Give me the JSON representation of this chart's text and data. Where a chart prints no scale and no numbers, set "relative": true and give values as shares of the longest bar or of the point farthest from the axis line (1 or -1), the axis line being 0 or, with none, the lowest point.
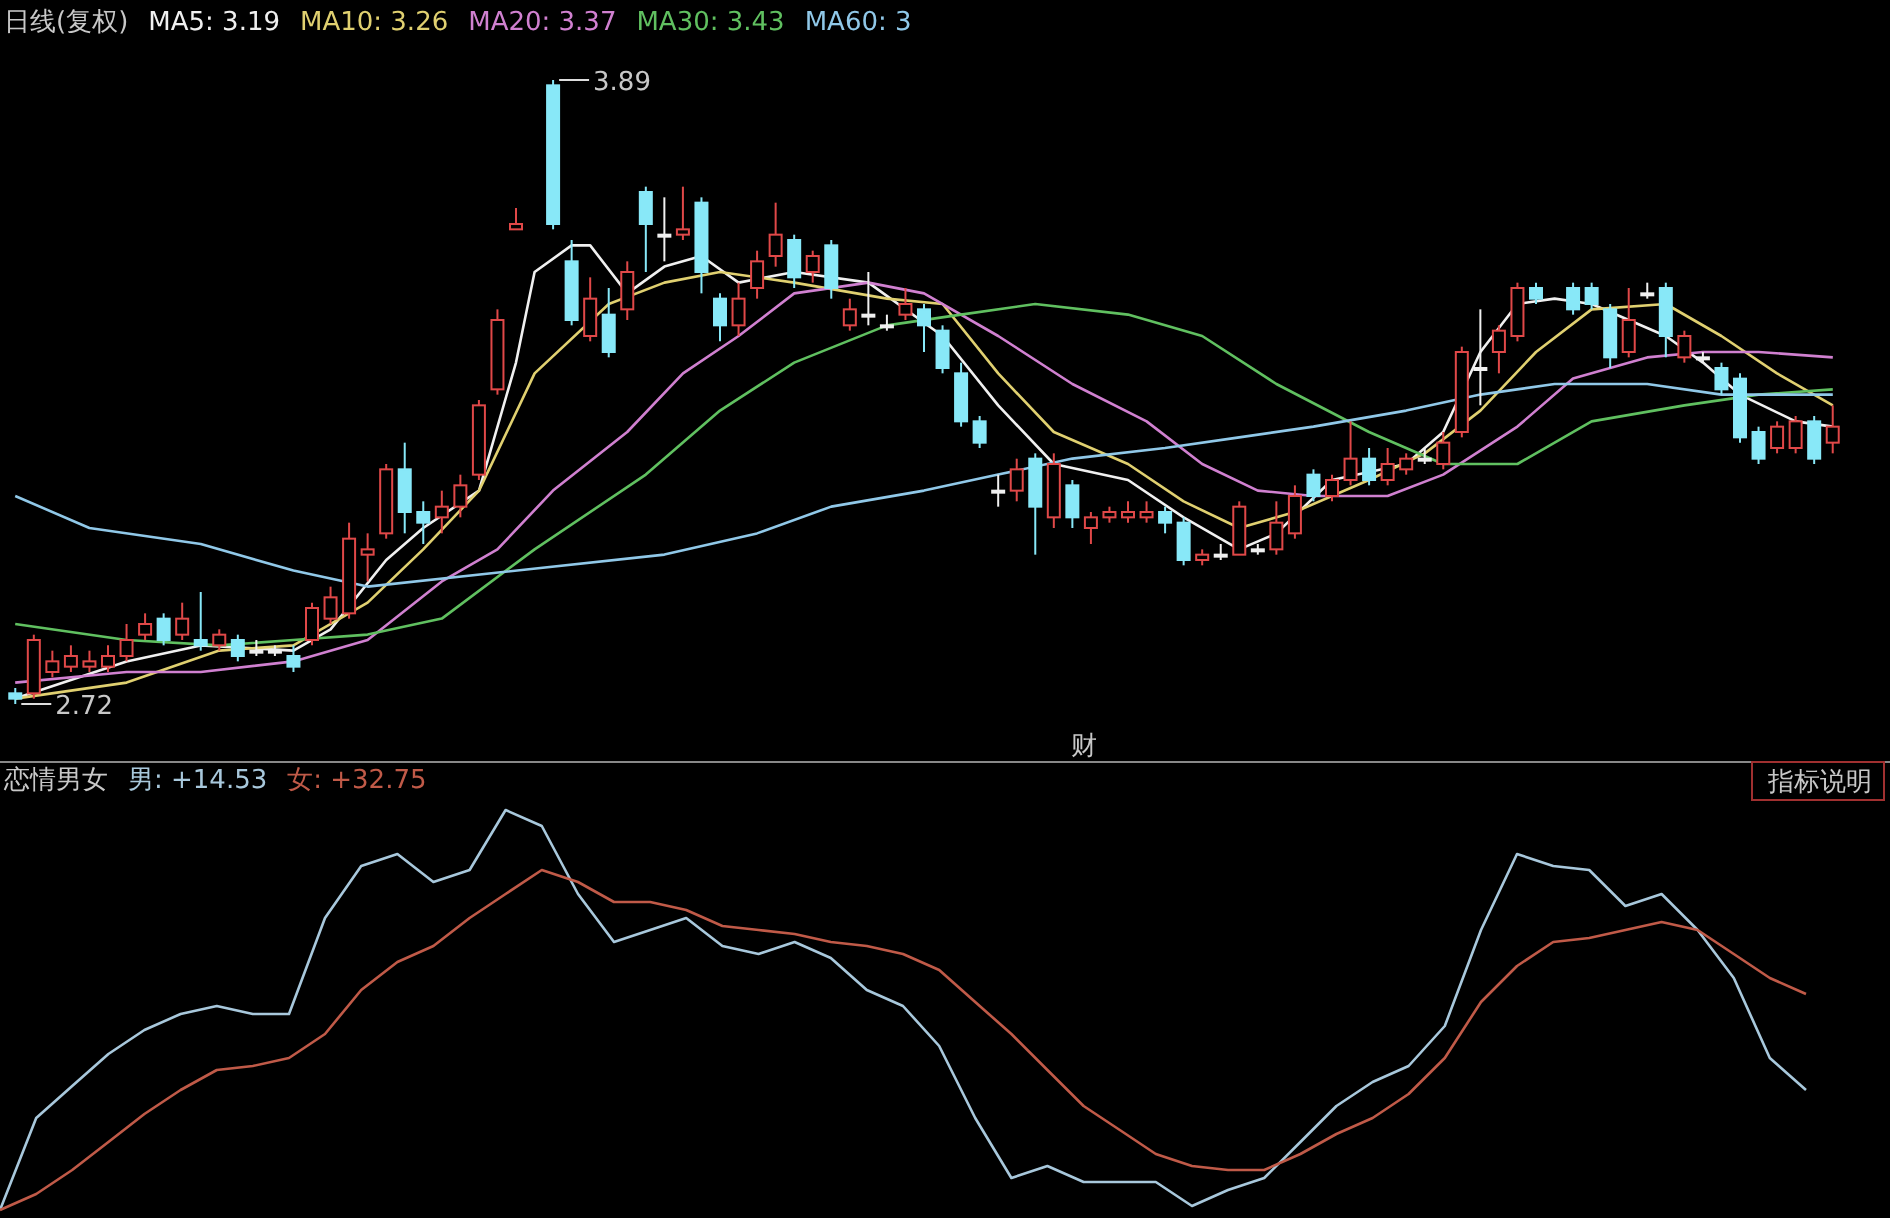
{
  "chart_data": [
    {
      "type": "candlestick",
      "categories": [
        null,
        null,
        null,
        null,
        null,
        null,
        null,
        null,
        null,
        null,
        null,
        null,
        null,
        null,
        null,
        null,
        null,
        null,
        null,
        null,
        null,
        null,
        null,
        null,
        null,
        null,
        null,
        null,
        null,
        null,
        null,
        null,
        null,
        null,
        null,
        null,
        null,
        null,
        null,
        null,
        null,
        null,
        null,
        null,
        null,
        null,
        null,
        null,
        null,
        null,
        null,
        null,
        null,
        null,
        null,
        null,
        null,
        null,
        null,
        null,
        null,
        null,
        null,
        null,
        null,
        null,
        null,
        null,
        null,
        null,
        null,
        null,
        null,
        null,
        null,
        null,
        null,
        null,
        null,
        null,
        null,
        null,
        null,
        null,
        null,
        null,
        null,
        null,
        null,
        null,
        null,
        null,
        null,
        null,
        null,
        null,
        null,
        null,
        null
      ],
      "ohlc": [
        [
          2.74,
          2.75,
          2.72,
          2.73
        ],
        [
          2.74,
          2.85,
          2.73,
          2.84
        ],
        [
          2.78,
          2.82,
          2.77,
          2.8
        ],
        [
          2.79,
          2.83,
          2.78,
          2.81
        ],
        [
          2.79,
          2.82,
          2.78,
          2.8
        ],
        [
          2.79,
          2.83,
          2.78,
          2.81
        ],
        [
          2.81,
          2.87,
          2.8,
          2.84
        ],
        [
          2.85,
          2.89,
          2.84,
          2.87
        ],
        [
          2.88,
          2.89,
          2.83,
          2.84
        ],
        [
          2.85,
          2.91,
          2.84,
          2.88
        ],
        [
          2.84,
          2.93,
          2.82,
          2.83
        ],
        [
          2.83,
          2.86,
          2.82,
          2.85
        ],
        [
          2.84,
          2.85,
          2.8,
          2.81
        ],
        [
          2.82,
          2.84,
          2.81,
          2.82
        ],
        [
          2.82,
          2.83,
          2.81,
          2.82
        ],
        [
          2.81,
          2.83,
          2.78,
          2.79
        ],
        [
          2.84,
          2.91,
          2.83,
          2.9
        ],
        [
          2.88,
          2.94,
          2.87,
          2.92
        ],
        [
          2.89,
          3.06,
          2.88,
          3.03
        ],
        [
          3.0,
          3.04,
          2.95,
          3.01
        ],
        [
          3.04,
          3.17,
          3.03,
          3.16
        ],
        [
          3.16,
          3.21,
          3.04,
          3.08
        ],
        [
          3.08,
          3.1,
          3.02,
          3.06
        ],
        [
          3.07,
          3.12,
          3.04,
          3.09
        ],
        [
          3.09,
          3.15,
          3.07,
          3.13
        ],
        [
          3.15,
          3.29,
          3.14,
          3.28
        ],
        [
          3.31,
          3.46,
          3.3,
          3.44
        ],
        [
          3.61,
          3.65,
          3.61,
          3.62
        ],
        null,
        [
          3.88,
          3.89,
          3.61,
          3.62
        ],
        [
          3.55,
          3.59,
          3.43,
          3.44
        ],
        [
          3.41,
          3.52,
          3.4,
          3.48
        ],
        [
          3.45,
          3.5,
          3.37,
          3.38
        ],
        [
          3.46,
          3.55,
          3.44,
          3.53
        ],
        [
          3.68,
          3.69,
          3.53,
          3.62
        ],
        [
          3.6,
          3.67,
          3.55,
          3.6
        ],
        [
          3.6,
          3.69,
          3.59,
          3.61
        ],
        [
          3.66,
          3.67,
          3.49,
          3.53
        ],
        [
          3.48,
          3.49,
          3.4,
          3.43
        ],
        [
          3.43,
          3.51,
          3.41,
          3.48
        ],
        [
          3.5,
          3.57,
          3.48,
          3.55
        ],
        [
          3.56,
          3.66,
          3.54,
          3.6
        ],
        [
          3.59,
          3.6,
          3.5,
          3.52
        ],
        [
          3.53,
          3.57,
          3.51,
          3.56
        ],
        [
          3.58,
          3.59,
          3.48,
          3.5
        ],
        [
          3.43,
          3.48,
          3.42,
          3.46
        ],
        [
          3.45,
          3.53,
          3.43,
          3.45
        ],
        [
          3.43,
          3.45,
          3.42,
          3.43
        ],
        [
          3.45,
          3.5,
          3.44,
          3.47
        ],
        [
          3.46,
          3.47,
          3.38,
          3.43
        ],
        [
          3.42,
          3.43,
          3.34,
          3.35
        ],
        [
          3.34,
          3.36,
          3.24,
          3.25
        ],
        [
          3.25,
          3.26,
          3.2,
          3.21
        ],
        [
          3.12,
          3.15,
          3.09,
          3.12
        ],
        [
          3.12,
          3.18,
          3.1,
          3.16
        ],
        [
          3.18,
          3.19,
          3.0,
          3.09
        ],
        [
          3.07,
          3.19,
          3.05,
          3.17
        ],
        [
          3.13,
          3.14,
          3.05,
          3.07
        ],
        [
          3.05,
          3.08,
          3.02,
          3.07
        ],
        [
          3.07,
          3.09,
          3.06,
          3.08
        ],
        [
          3.07,
          3.1,
          3.06,
          3.08
        ],
        [
          3.07,
          3.1,
          3.06,
          3.08
        ],
        [
          3.08,
          3.09,
          3.04,
          3.06
        ],
        [
          3.06,
          3.07,
          2.98,
          2.99
        ],
        [
          2.99,
          3.01,
          2.98,
          3.0
        ],
        [
          3.0,
          3.02,
          2.99,
          3.0
        ],
        [
          3.0,
          3.1,
          3.0,
          3.09
        ],
        [
          3.01,
          3.02,
          3.0,
          3.01
        ],
        [
          3.01,
          3.1,
          3.0,
          3.06
        ],
        [
          3.04,
          3.13,
          3.03,
          3.11
        ],
        [
          3.15,
          3.16,
          3.1,
          3.11
        ],
        [
          3.11,
          3.15,
          3.1,
          3.14
        ],
        [
          3.14,
          3.25,
          3.13,
          3.18
        ],
        [
          3.18,
          3.2,
          3.13,
          3.14
        ],
        [
          3.14,
          3.2,
          3.13,
          3.17
        ],
        [
          3.16,
          3.19,
          3.15,
          3.18
        ],
        [
          3.18,
          3.2,
          3.17,
          3.18
        ],
        [
          3.17,
          3.23,
          3.16,
          3.21
        ],
        [
          3.23,
          3.39,
          3.22,
          3.38
        ],
        [
          3.35,
          3.46,
          3.28,
          3.35
        ],
        [
          3.38,
          3.43,
          3.34,
          3.42
        ],
        [
          3.41,
          3.51,
          3.4,
          3.5
        ],
        [
          3.5,
          3.51,
          3.47,
          3.48
        ],
        null,
        [
          3.5,
          3.51,
          3.45,
          3.46
        ],
        [
          3.5,
          3.51,
          3.46,
          3.47
        ],
        [
          3.46,
          3.47,
          3.35,
          3.37
        ],
        [
          3.38,
          3.5,
          3.37,
          3.44
        ],
        [
          3.49,
          3.51,
          3.48,
          3.49
        ],
        [
          3.5,
          3.51,
          3.37,
          3.41
        ],
        [
          3.37,
          3.42,
          3.36,
          3.41
        ],
        [
          3.37,
          3.38,
          3.36,
          3.37
        ],
        [
          3.35,
          3.36,
          3.3,
          3.31
        ],
        [
          3.33,
          3.34,
          3.21,
          3.22
        ],
        [
          3.23,
          3.24,
          3.17,
          3.18
        ],
        [
          3.2,
          3.25,
          3.19,
          3.24
        ],
        [
          3.2,
          3.26,
          3.19,
          3.25
        ],
        [
          3.25,
          3.26,
          3.17,
          3.18
        ],
        [
          3.21,
          3.28,
          3.19,
          3.24
        ]
      ],
      "series": [
        {
          "type": "line",
          "name": "MA5: 3.19",
          "color": "#f0f0f0",
          "values": [
            2.73,
            null,
            null,
            null,
            null,
            null,
            2.8,
            null,
            null,
            null,
            2.83,
            null,
            null,
            null,
            null,
            2.82,
            null,
            2.86,
            null,
            null,
            2.99,
            null,
            3.05,
            null,
            null,
            3.12,
            null,
            3.36,
            3.53,
            null,
            3.58,
            3.58,
            null,
            3.49,
            null,
            3.54,
            null,
            3.56,
            null,
            3.51,
            null,
            null,
            3.53,
            null,
            null,
            null,
            3.51,
            null,
            null,
            null,
            3.41,
            null,
            null,
            3.28,
            null,
            null,
            3.17,
            null,
            null,
            null,
            3.14,
            null,
            null,
            3.07,
            null,
            null,
            3.01,
            null,
            3.04,
            null,
            null,
            3.14,
            null,
            null,
            null,
            3.17,
            null,
            3.23,
            null,
            3.38,
            null,
            3.47,
            null,
            3.48,
            null,
            3.47,
            null,
            null,
            null,
            3.41,
            null,
            3.36,
            null,
            3.3,
            null,
            null,
            3.25,
            null,
            3.24
          ]
        },
        {
          "type": "line",
          "name": "MA10: 3.26",
          "color": "#e0d070",
          "values": [
            2.73,
            null,
            null,
            null,
            null,
            null,
            2.76,
            null,
            null,
            null,
            null,
            2.82,
            null,
            null,
            null,
            2.83,
            null,
            null,
            null,
            2.91,
            null,
            null,
            3.01,
            null,
            null,
            3.12,
            null,
            null,
            3.34,
            null,
            null,
            null,
            3.47,
            null,
            null,
            3.51,
            null,
            null,
            3.53,
            null,
            null,
            null,
            3.51,
            null,
            null,
            null,
            null,
            3.48,
            null,
            null,
            3.47,
            null,
            null,
            3.34,
            null,
            null,
            3.23,
            null,
            null,
            null,
            3.17,
            null,
            null,
            3.1,
            null,
            null,
            3.05,
            null,
            null,
            3.08,
            null,
            null,
            null,
            3.14,
            null,
            null,
            3.19,
            null,
            null,
            3.27,
            null,
            null,
            3.38,
            null,
            null,
            3.46,
            null,
            null,
            null,
            3.47,
            null,
            null,
            3.41,
            null,
            null,
            3.34,
            null,
            null,
            3.28
          ]
        },
        {
          "type": "line",
          "name": "MA20: 3.37",
          "color": "#d080d0",
          "values": [
            2.76,
            null,
            null,
            null,
            null,
            null,
            2.78,
            null,
            null,
            null,
            2.78,
            null,
            null,
            null,
            null,
            2.8,
            null,
            null,
            null,
            2.84,
            null,
            null,
            null,
            2.95,
            null,
            null,
            3.01,
            null,
            null,
            3.12,
            null,
            null,
            null,
            3.23,
            null,
            null,
            3.34,
            null,
            null,
            3.41,
            null,
            null,
            3.49,
            null,
            null,
            null,
            3.51,
            null,
            null,
            3.49,
            null,
            null,
            null,
            3.41,
            null,
            null,
            null,
            3.32,
            null,
            null,
            null,
            3.25,
            null,
            null,
            3.17,
            null,
            null,
            3.12,
            null,
            null,
            3.11,
            null,
            null,
            null,
            3.11,
            null,
            null,
            3.15,
            null,
            null,
            null,
            3.24,
            null,
            null,
            3.33,
            null,
            null,
            null,
            3.37,
            null,
            null,
            3.38,
            null,
            null,
            3.38,
            null,
            null,
            null,
            3.37
          ]
        },
        {
          "type": "line",
          "name": "MA30: 3.43",
          "color": "#60c060",
          "values": [
            2.87,
            null,
            null,
            null,
            null,
            null,
            2.84,
            null,
            null,
            null,
            null,
            2.83,
            null,
            null,
            null,
            2.84,
            null,
            null,
            null,
            2.85,
            null,
            null,
            null,
            2.88,
            null,
            null,
            null,
            null,
            3.01,
            null,
            null,
            null,
            null,
            null,
            3.15,
            null,
            null,
            null,
            3.27,
            null,
            null,
            null,
            3.36,
            null,
            null,
            null,
            null,
            3.43,
            null,
            null,
            null,
            3.45,
            null,
            null,
            null,
            3.47,
            null,
            null,
            null,
            null,
            3.45,
            null,
            null,
            null,
            3.41,
            null,
            null,
            null,
            3.32,
            null,
            null,
            null,
            null,
            3.23,
            null,
            null,
            null,
            3.17,
            null,
            null,
            null,
            3.17,
            null,
            null,
            null,
            3.25,
            null,
            null,
            null,
            null,
            3.28,
            null,
            null,
            null,
            3.3,
            null,
            null,
            null,
            3.31
          ]
        },
        {
          "type": "line",
          "name": "MA60: 3",
          "color": "#90c8e8",
          "values": [
            3.11,
            null,
            null,
            null,
            3.05,
            null,
            null,
            null,
            null,
            null,
            3.02,
            null,
            null,
            null,
            null,
            2.97,
            null,
            null,
            null,
            2.94,
            null,
            null,
            null,
            null,
            null,
            null,
            null,
            null,
            null,
            null,
            null,
            null,
            null,
            null,
            null,
            3.0,
            null,
            null,
            null,
            null,
            3.04,
            null,
            null,
            null,
            3.09,
            null,
            null,
            null,
            null,
            3.12,
            null,
            null,
            null,
            3.15,
            null,
            null,
            null,
            3.18,
            null,
            null,
            null,
            null,
            3.2,
            null,
            null,
            null,
            3.22,
            null,
            null,
            null,
            3.24,
            null,
            null,
            null,
            null,
            3.27,
            null,
            null,
            null,
            3.3,
            null,
            null,
            null,
            3.32,
            null,
            null,
            null,
            null,
            3.32,
            null,
            null,
            null,
            3.3,
            null,
            null,
            null,
            3.3,
            null,
            3.3
          ]
        }
      ],
      "legend": "top left",
      "annotations": [
        "日线(复权)",
        "3.89",
        "2.72",
        "财"
      ]
    },
    {
      "type": "line",
      "relative": true,
      "title": "恋情男女",
      "categories": [
        null,
        null,
        null,
        null,
        null,
        null,
        null,
        null,
        null,
        null,
        null,
        null,
        null,
        null,
        null,
        null,
        null,
        null,
        null,
        null,
        null,
        null,
        null,
        null,
        null,
        null,
        null,
        null,
        null,
        null,
        null,
        null,
        null,
        null,
        null,
        null,
        null,
        null,
        null,
        null,
        null,
        null,
        null,
        null,
        null,
        null,
        null,
        null,
        null,
        null,
        null
      ],
      "series": [
        {
          "name": "男: +14.53",
          "color": "#a8c8dc",
          "values": [
            0,
            0.23,
            0.31,
            0.39,
            0.45,
            0.49,
            0.51,
            0.49,
            0.49,
            0.73,
            0.86,
            0.89,
            0.82,
            0.85,
            1.0,
            0.96,
            0.79,
            0.67,
            0.7,
            0.73,
            0.66,
            0.64,
            0.67,
            0.63,
            0.55,
            0.51,
            0.41,
            0.23,
            0.08,
            0.11,
            0.07,
            0.07,
            0.07,
            0.01,
            0.05,
            0.08,
            0.17,
            0.26,
            0.32,
            0.36,
            0.46,
            0.7,
            0.89,
            0.86,
            0.85,
            0.76,
            0.79,
            0.7,
            0.58,
            0.38,
            0.3
          ]
        },
        {
          "name": "女: +32.75",
          "color": "#c05a48",
          "values": [
            0,
            0.04,
            0.1,
            0.17,
            0.24,
            0.3,
            0.35,
            0.36,
            0.38,
            0.44,
            0.55,
            0.62,
            0.66,
            0.73,
            0.79,
            0.85,
            0.82,
            0.77,
            0.77,
            0.75,
            0.71,
            0.7,
            0.69,
            0.67,
            0.66,
            0.64,
            0.6,
            0.52,
            0.44,
            0.35,
            0.26,
            0.2,
            0.14,
            0.11,
            0.1,
            0.1,
            0.14,
            0.19,
            0.23,
            0.29,
            0.38,
            0.52,
            0.61,
            0.67,
            0.68,
            0.7,
            0.72,
            0.7,
            0.64,
            0.58,
            0.54
          ]
        }
      ],
      "legend": "top left",
      "annotations": [
        "指标说明"
      ]
    }
  ]
}
